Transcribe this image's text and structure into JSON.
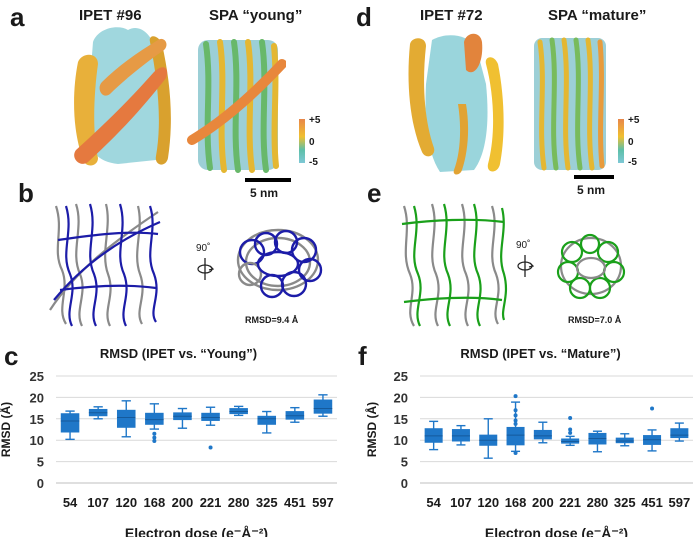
{
  "figure": {
    "panels": {
      "a": {
        "letter": "a",
        "left_title": "IPET #96",
        "right_title": "SPA “young”",
        "colorbar": {
          "max": "+5",
          "mid": "0",
          "min": "-5",
          "colors": [
            "#e8874a",
            "#f0c030",
            "#5dbfa8",
            "#7ec8d6"
          ]
        },
        "scale_bar_label": "5 nm"
      },
      "b": {
        "letter": "b",
        "rotation_label": "90˚",
        "rmsd_label": "RMSD=9.4 Å",
        "model_color": "#1c1ca8",
        "reference_color": "#8a8a8a"
      },
      "d": {
        "letter": "d",
        "left_title": "IPET #72",
        "right_title": "SPA “mature”",
        "colorbar": {
          "max": "+5",
          "mid": "0",
          "min": "-5",
          "colors": [
            "#e8874a",
            "#f0c030",
            "#5dbfa8",
            "#7ec8d6"
          ]
        },
        "scale_bar_label": "5 nm"
      },
      "e": {
        "letter": "e",
        "rotation_label": "90˚",
        "rmsd_label": "RMSD=7.0 Å",
        "model_color": "#1aa01a",
        "reference_color": "#8a8a8a"
      },
      "c": {
        "letter": "c"
      },
      "f": {
        "letter": "f"
      }
    }
  },
  "chart_data": [
    {
      "id": "c",
      "type": "box",
      "title": "RMSD (IPET vs. “Young”)",
      "xlabel": "Electron dose (e⁻Å⁻²)",
      "ylabel": "RMSD (Å)",
      "ylim": [
        0,
        25
      ],
      "yticks": [
        0,
        5,
        10,
        15,
        20,
        25
      ],
      "grid": true,
      "color": "#1f77c8",
      "categories": [
        "54",
        "107",
        "120",
        "168",
        "200",
        "221",
        "280",
        "325",
        "451",
        "597"
      ],
      "boxes": [
        {
          "min": 10.2,
          "q1": 11.8,
          "median": 14.5,
          "q3": 16.3,
          "max": 16.8,
          "outliers": []
        },
        {
          "min": 15.0,
          "q1": 15.6,
          "median": 16.4,
          "q3": 17.3,
          "max": 17.8,
          "outliers": []
        },
        {
          "min": 10.8,
          "q1": 12.9,
          "median": 15.3,
          "q3": 17.1,
          "max": 19.2,
          "outliers": []
        },
        {
          "min": 12.6,
          "q1": 13.6,
          "median": 14.8,
          "q3": 16.4,
          "max": 18.5,
          "outliers": [
            11.5,
            10.6,
            9.8
          ]
        },
        {
          "min": 12.8,
          "q1": 14.7,
          "median": 15.6,
          "q3": 16.5,
          "max": 17.4,
          "outliers": []
        },
        {
          "min": 13.5,
          "q1": 14.5,
          "median": 15.3,
          "q3": 16.4,
          "max": 17.7,
          "outliers": [
            8.3
          ]
        },
        {
          "min": 15.8,
          "q1": 16.1,
          "median": 16.7,
          "q3": 17.5,
          "max": 17.9,
          "outliers": []
        },
        {
          "min": 11.7,
          "q1": 13.6,
          "median": 15.0,
          "q3": 15.7,
          "max": 16.7,
          "outliers": []
        },
        {
          "min": 14.2,
          "q1": 14.8,
          "median": 15.7,
          "q3": 16.8,
          "max": 17.6,
          "outliers": []
        },
        {
          "min": 15.6,
          "q1": 16.2,
          "median": 17.4,
          "q3": 19.5,
          "max": 20.6,
          "outliers": []
        }
      ]
    },
    {
      "id": "f",
      "type": "box",
      "title": "RMSD (IPET vs. “Mature”)",
      "xlabel": "Electron dose (e⁻Å⁻²)",
      "ylabel": "RMSD (Å)",
      "ylim": [
        0,
        25
      ],
      "yticks": [
        0,
        5,
        10,
        15,
        20,
        25
      ],
      "grid": true,
      "color": "#1f77c8",
      "categories": [
        "54",
        "107",
        "120",
        "168",
        "200",
        "221",
        "280",
        "325",
        "451",
        "597"
      ],
      "boxes": [
        {
          "min": 7.8,
          "q1": 9.4,
          "median": 11.0,
          "q3": 12.8,
          "max": 14.4,
          "outliers": []
        },
        {
          "min": 8.9,
          "q1": 9.7,
          "median": 11.0,
          "q3": 12.6,
          "max": 13.4,
          "outliers": []
        },
        {
          "min": 5.8,
          "q1": 8.7,
          "median": 10.0,
          "q3": 11.3,
          "max": 15.0,
          "outliers": []
        },
        {
          "min": 7.4,
          "q1": 8.8,
          "median": 11.2,
          "q3": 13.1,
          "max": 18.9,
          "outliers": [
            20.3,
            17.0,
            15.8,
            14.6,
            13.8,
            7.0
          ]
        },
        {
          "min": 9.4,
          "q1": 10.2,
          "median": 11.0,
          "q3": 12.4,
          "max": 14.2,
          "outliers": []
        },
        {
          "min": 8.8,
          "q1": 9.2,
          "median": 9.7,
          "q3": 10.4,
          "max": 10.9,
          "outliers": [
            15.2,
            12.5,
            11.7
          ]
        },
        {
          "min": 7.3,
          "q1": 9.0,
          "median": 10.4,
          "q3": 11.7,
          "max": 12.1,
          "outliers": []
        },
        {
          "min": 8.7,
          "q1": 9.3,
          "median": 9.8,
          "q3": 10.6,
          "max": 11.5,
          "outliers": []
        },
        {
          "min": 7.5,
          "q1": 8.9,
          "median": 10.1,
          "q3": 11.2,
          "max": 12.4,
          "outliers": [
            17.4
          ]
        },
        {
          "min": 9.8,
          "q1": 10.5,
          "median": 11.2,
          "q3": 12.8,
          "max": 14.0,
          "outliers": []
        }
      ]
    }
  ]
}
